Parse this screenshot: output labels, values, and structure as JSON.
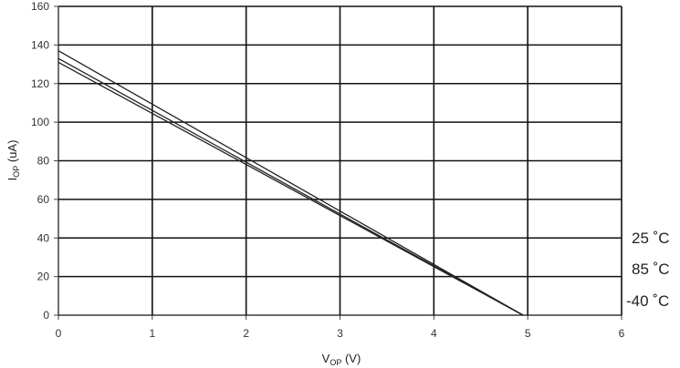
{
  "chart_data": {
    "type": "line",
    "x_range": [
      0,
      6
    ],
    "y_range": [
      0,
      160
    ],
    "x_ticks": [
      "0",
      "1",
      "2",
      "3",
      "4",
      "5",
      "6"
    ],
    "y_ticks": [
      "0",
      "20",
      "40",
      "60",
      "80",
      "100",
      "120",
      "140",
      "160"
    ],
    "grid": true,
    "xlabel": {
      "main": "V",
      "sub": "OP",
      "unit": " (V)"
    },
    "ylabel": {
      "main": "I",
      "sub": "OP",
      "unit": " (uA)"
    },
    "legend_placement": "right",
    "series": [
      {
        "name": "25 ˚C",
        "x": [
          0,
          4.95
        ],
        "y": [
          137,
          0
        ]
      },
      {
        "name": "85 ˚C",
        "x": [
          0,
          4.95
        ],
        "y": [
          133,
          0
        ]
      },
      {
        "name": "-40 ˚C",
        "x": [
          0,
          4.95
        ],
        "y": [
          131,
          0
        ]
      }
    ],
    "colors": {
      "series": "#222222",
      "grid": "#111111",
      "axis": "#444444"
    }
  }
}
